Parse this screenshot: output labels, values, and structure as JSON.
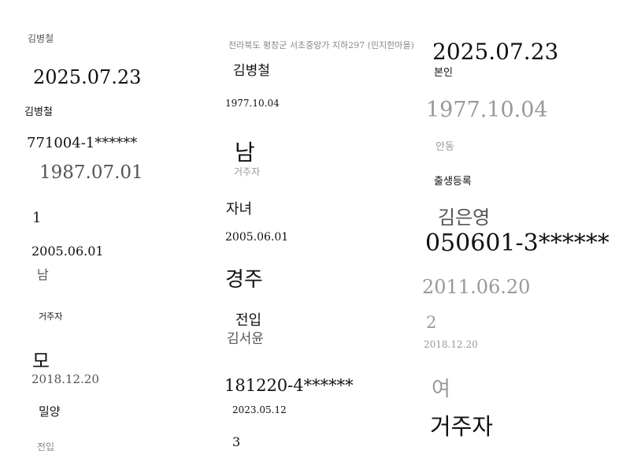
{
  "col1": {
    "name_small": "김병철",
    "report_date": "2025.07.23",
    "name": "김병철",
    "id_number": "771004-1******",
    "date_1987": "1987.07.01",
    "number_1": "1",
    "date_2005": "2005.06.01",
    "gender": "남",
    "residence": "거주자",
    "relation": "모",
    "date_2018": "2018.12.20",
    "origin": "밀양",
    "status": "전입"
  },
  "col2": {
    "address": "전라북도 평창군 서초중앙가 지하297 (민지한마을)",
    "name": "김병철",
    "birth_date": "1977.10.04",
    "gender": "남",
    "residence": "거주자",
    "relation": "자녀",
    "birth_date_child": "2005.06.01",
    "origin": "경주",
    "status": "전입",
    "child_name": "김서윤",
    "id_number": "181220-4******",
    "date_2023": "2023.05.12",
    "number_3": "3"
  },
  "col3": {
    "report_date": "2025.07.23",
    "relation": "본인",
    "birth_date": "1977.10.04",
    "origin": "안동",
    "status": "출생등록",
    "name": "김은영",
    "id_number": "050601-3******",
    "date_2011": "2011.06.20",
    "number_2": "2",
    "date_2018": "2018.12.20",
    "gender": "여",
    "residence": "거주자"
  }
}
